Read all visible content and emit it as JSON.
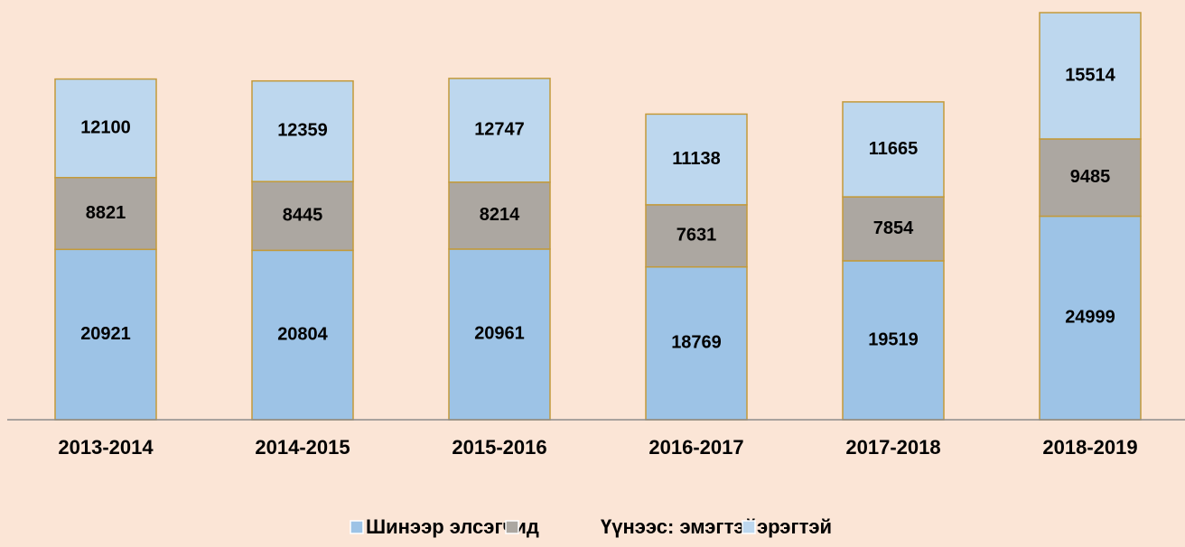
{
  "chart_data": {
    "type": "stacked_bar",
    "categories": [
      "2013-2014",
      "2014-2015",
      "2015-2016",
      "2016-2017",
      "2017-2018",
      "2018-2019"
    ],
    "series": [
      {
        "name": "Шинээр элсэгчид",
        "color": "#9dc3e6",
        "values": [
          20921,
          20804,
          20961,
          18769,
          19519,
          24999
        ]
      },
      {
        "name": "Үүнээс: эмэгтэй",
        "color": "#aca7a1",
        "values": [
          8821,
          8445,
          8214,
          7631,
          7854,
          9485
        ]
      },
      {
        "name": "эрэгтэй",
        "color": "#bdd7ee",
        "values": [
          12100,
          12359,
          12747,
          11138,
          11665,
          15514
        ]
      }
    ],
    "ylim": [
      0,
      50000
    ],
    "legend": "bottom"
  }
}
